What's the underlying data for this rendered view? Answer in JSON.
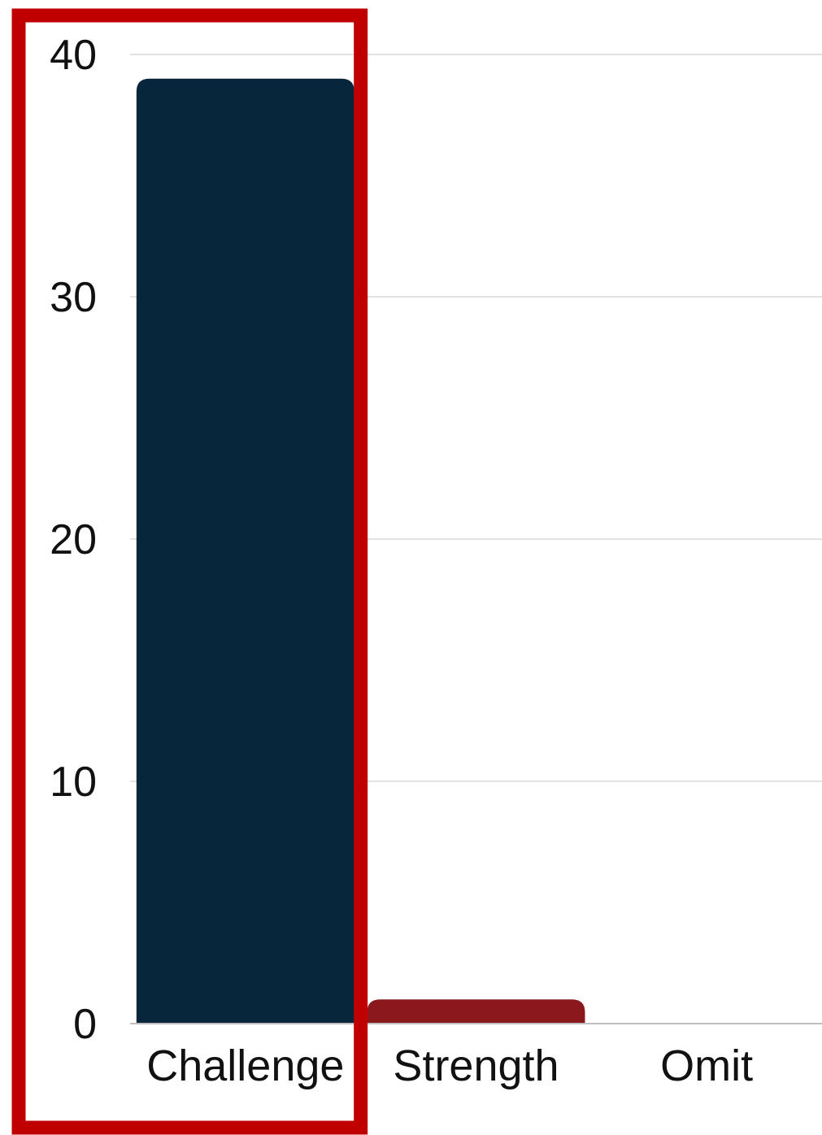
{
  "chart_data": {
    "type": "bar",
    "categories": [
      "Challenge",
      "Strength",
      "Omit"
    ],
    "values": [
      39,
      1,
      0
    ],
    "colors": [
      "#08263b",
      "#8b181c",
      "#8b181c"
    ],
    "ylim": [
      0,
      40
    ],
    "yticks": [
      {
        "value": 0,
        "label": "0"
      },
      {
        "value": 10,
        "label": "10"
      },
      {
        "value": 20,
        "label": "20"
      },
      {
        "value": 30,
        "label": "30"
      },
      {
        "value": 40,
        "label": "40"
      }
    ],
    "grid": true,
    "gridline_color": "#d9d9d9",
    "axis_color": "#bfbfbf",
    "highlight": {
      "category": "Challenge",
      "color": "#c00000"
    }
  }
}
